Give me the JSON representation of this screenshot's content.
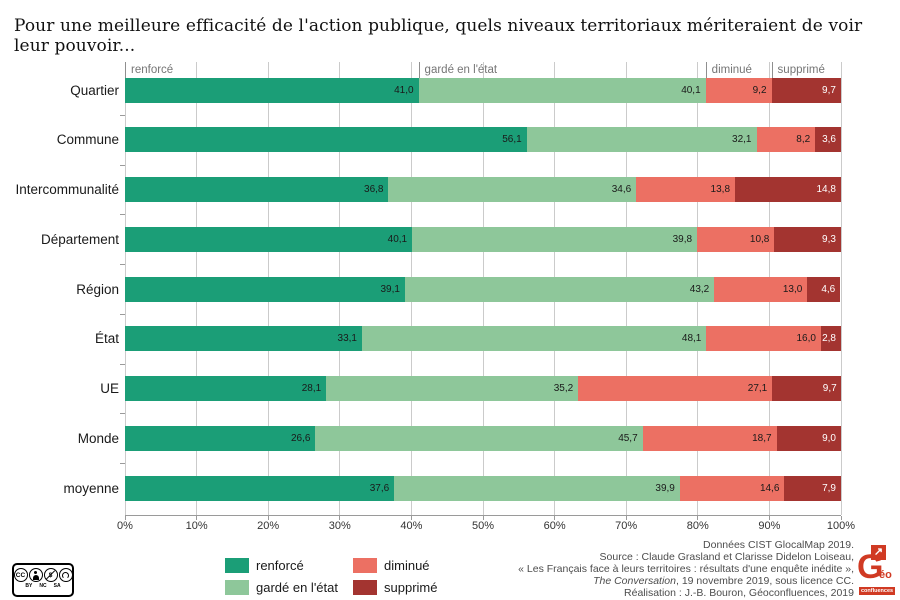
{
  "title": "Pour une meilleure efficacité de l'action publique, quels niveaux territoriaux mériteraient de voir leur pouvoir...",
  "chart_data": {
    "type": "bar",
    "orientation": "horizontal-stacked",
    "title": "Pour une meilleure efficacité de l'action publique, quels niveaux territoriaux mériteraient de voir leur pouvoir...",
    "categories": [
      "Quartier",
      "Commune",
      "Intercommunalité",
      "Département",
      "Région",
      "État",
      "UE",
      "Monde",
      "moyenne"
    ],
    "series": [
      {
        "name": "renforcé",
        "color": "#1b9e77",
        "label_color": "#1a1a1a",
        "values": [
          41.0,
          56.1,
          36.8,
          40.1,
          39.1,
          33.1,
          28.1,
          26.6,
          37.6
        ]
      },
      {
        "name": "gardé en l'état",
        "color": "#8ec79a",
        "label_color": "#1a1a1a",
        "values": [
          40.1,
          32.1,
          34.6,
          39.8,
          43.2,
          48.1,
          35.2,
          45.7,
          39.9
        ]
      },
      {
        "name": "diminué",
        "color": "#ec7063",
        "label_color": "#1a1a1a",
        "values": [
          9.2,
          8.2,
          13.8,
          10.8,
          13.0,
          16.0,
          27.1,
          18.7,
          14.6
        ]
      },
      {
        "name": "supprimé",
        "color": "#a33430",
        "label_color": "#ffffff",
        "values": [
          9.7,
          3.6,
          14.8,
          9.3,
          4.6,
          2.8,
          9.7,
          9.0,
          7.9
        ]
      }
    ],
    "x_ticks": [
      "0%",
      "10%",
      "20%",
      "30%",
      "40%",
      "50%",
      "60%",
      "70%",
      "80%",
      "90%",
      "100%"
    ],
    "xlim": [
      0,
      100
    ],
    "grid": true,
    "value_decimal_separator": ",",
    "legend_position": "bottom-left",
    "legend": [
      "renforcé",
      "gardé en l'état",
      "diminué",
      "supprimé"
    ]
  },
  "footer": {
    "line1": "Données CIST GlocalMap 2019.",
    "line2": "Source : Claude Grasland et Clarisse Didelon Loiseau,",
    "line3": "« Les Français face à leurs territoires : résultats d'une enquête inédite »,",
    "line4_italic": "The Conversation",
    "line4_rest": ", 19 novembre 2019, sous licence CC.",
    "line5": "Réalisation : J.-B. Bouron, Géoconfluences, 2019"
  },
  "cc_badge": {
    "cc": "CC",
    "labels": [
      "BY",
      "NC",
      "SA"
    ]
  },
  "logo": {
    "arrow": "➤",
    "eo": "éo",
    "confluences": "confluences",
    "color": "#d03a23"
  }
}
